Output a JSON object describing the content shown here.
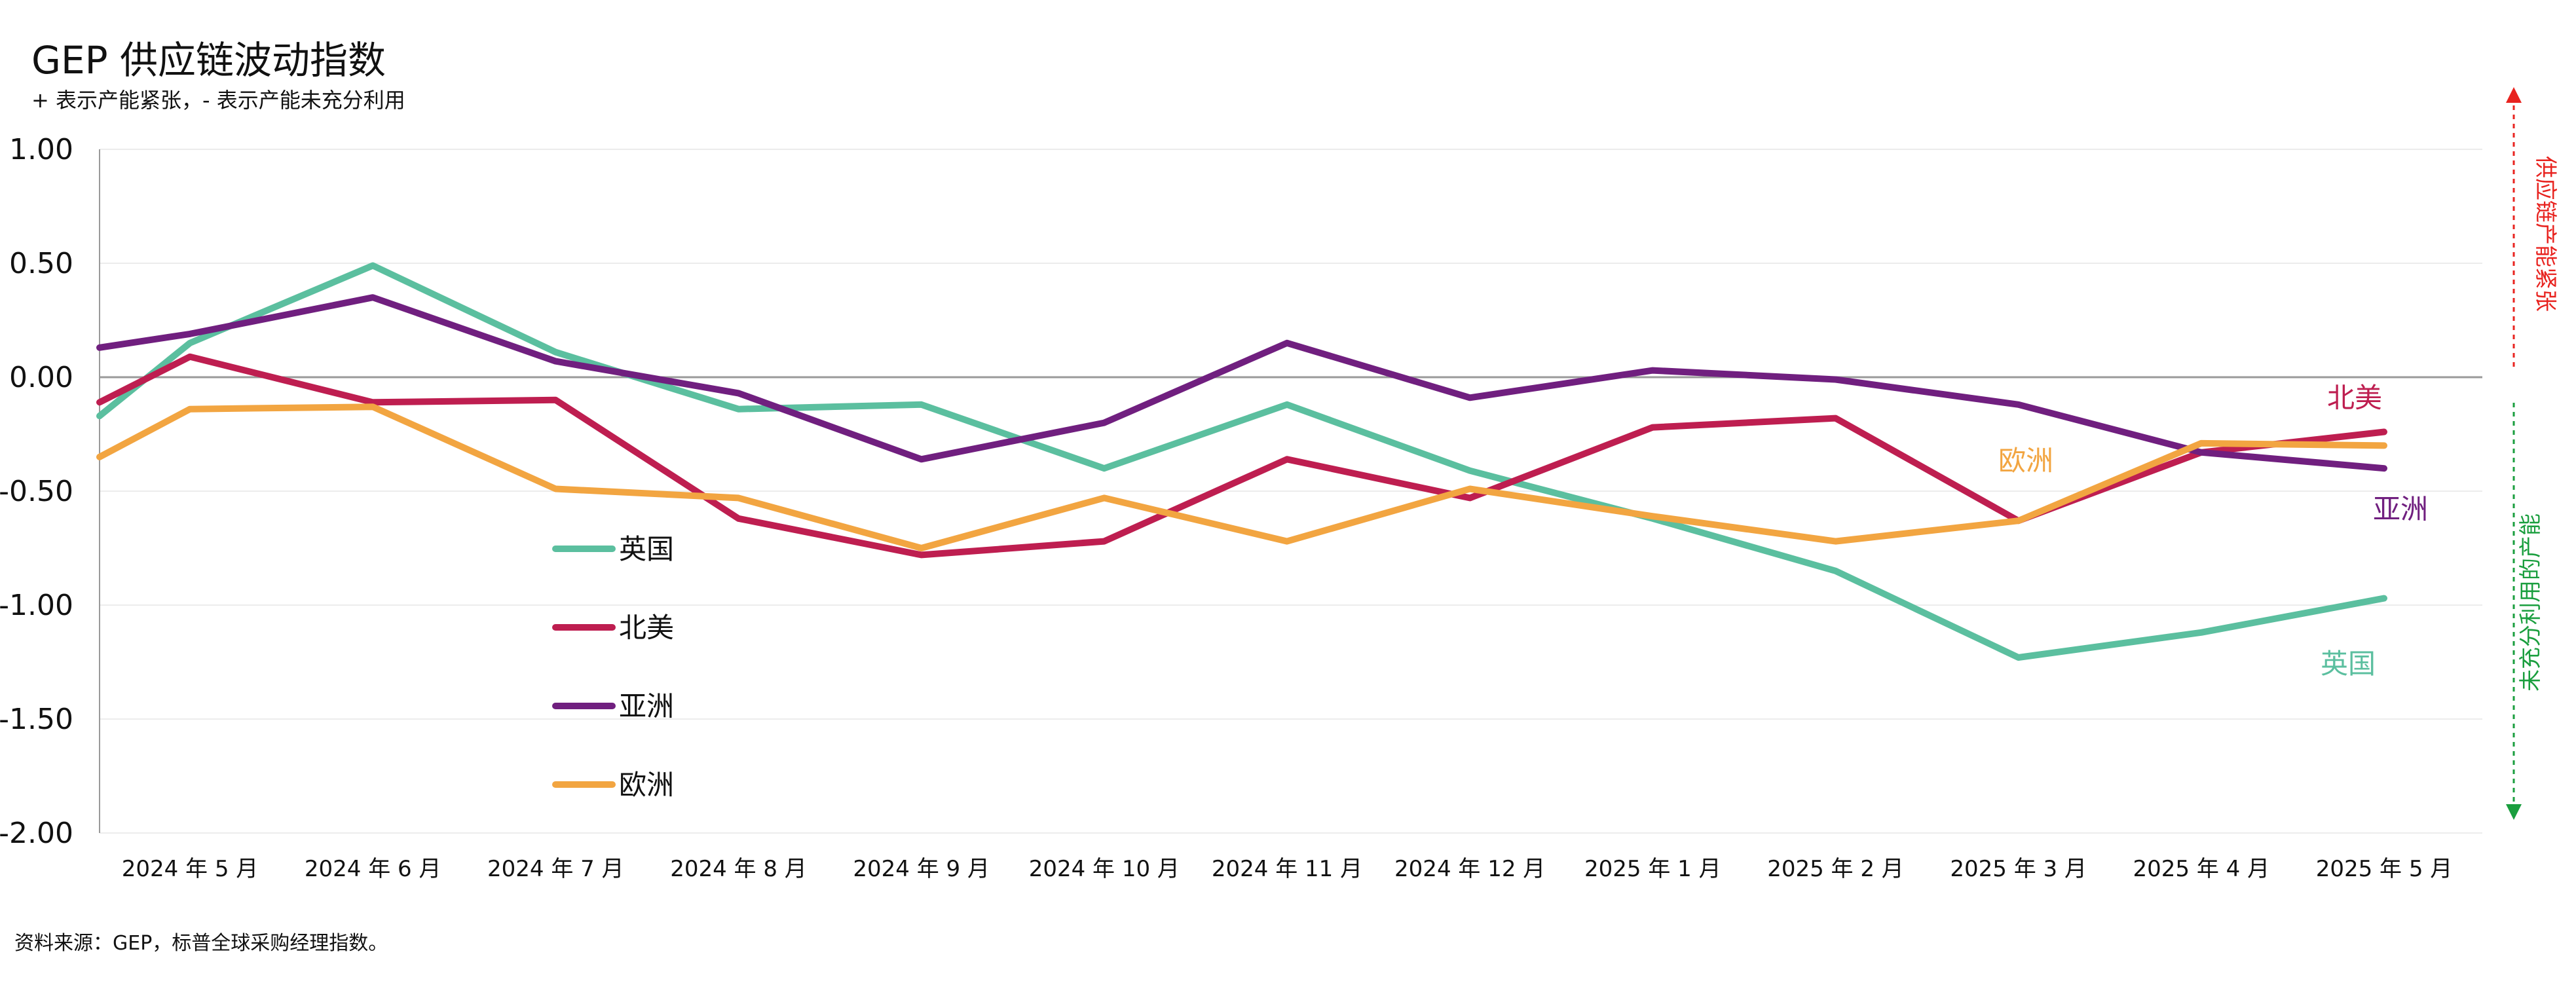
{
  "chart_data": {
    "type": "line",
    "title": "GEP 供应链波动指数",
    "subtitle": "+ 表示产能紧张，- 表示产能未充分利用",
    "source": "资料来源：GEP，标普全球采购经理指数。",
    "xlabel": "",
    "ylabel": "",
    "ylim": [
      -2.0,
      1.0
    ],
    "yticks": [
      1.0,
      0.5,
      0.0,
      -0.5,
      -1.0,
      -1.5,
      -2.0
    ],
    "ytick_labels": [
      "1.00",
      "0.50",
      "0.00",
      "-0.50",
      "-1.00",
      "-1.50",
      "-2.00"
    ],
    "grid": true,
    "legend_position": "center-left",
    "categories": [
      "2024 年 5 月",
      "2024 年 6 月",
      "2024 年 7 月",
      "2024 年 8 月",
      "2024 年 9 月",
      "2024 年 10 月",
      "2024 年 11 月",
      "2024 年 12 月",
      "2025 年 1 月",
      "2025 年 2 月",
      "2025 年 3 月",
      "2025 年 4 月",
      "2025 年 5 月"
    ],
    "series": [
      {
        "name": "英国",
        "color": "#5bbf9f",
        "lead": -0.17,
        "values": [
          0.15,
          0.49,
          0.11,
          -0.14,
          -0.12,
          -0.4,
          -0.12,
          -0.41,
          -0.62,
          -0.85,
          -1.23,
          -1.12,
          -0.97
        ],
        "end_label": "英国"
      },
      {
        "name": "北美",
        "color": "#be1e50",
        "lead": -0.11,
        "values": [
          0.09,
          -0.11,
          -0.1,
          -0.62,
          -0.78,
          -0.72,
          -0.36,
          -0.53,
          -0.22,
          -0.18,
          -0.63,
          -0.33,
          -0.24
        ],
        "end_label": "北美"
      },
      {
        "name": "亚洲",
        "color": "#701f7f",
        "lead": 0.13,
        "values": [
          0.19,
          0.35,
          0.07,
          -0.07,
          -0.36,
          -0.2,
          0.15,
          -0.09,
          0.03,
          -0.01,
          -0.12,
          -0.33,
          -0.4
        ],
        "end_label": "亚洲"
      },
      {
        "name": "欧洲",
        "color": "#f2a541",
        "lead": -0.35,
        "values": [
          -0.14,
          -0.13,
          -0.49,
          -0.53,
          -0.75,
          -0.53,
          -0.72,
          -0.49,
          -0.61,
          -0.72,
          -0.63,
          -0.29,
          -0.3
        ],
        "end_label": "欧洲"
      }
    ],
    "side_labels": {
      "top": {
        "text": "供应链产能紧张",
        "color": "#e8231f"
      },
      "bottom": {
        "text": "未充分利用的产能",
        "color": "#1a9e3e"
      }
    }
  }
}
